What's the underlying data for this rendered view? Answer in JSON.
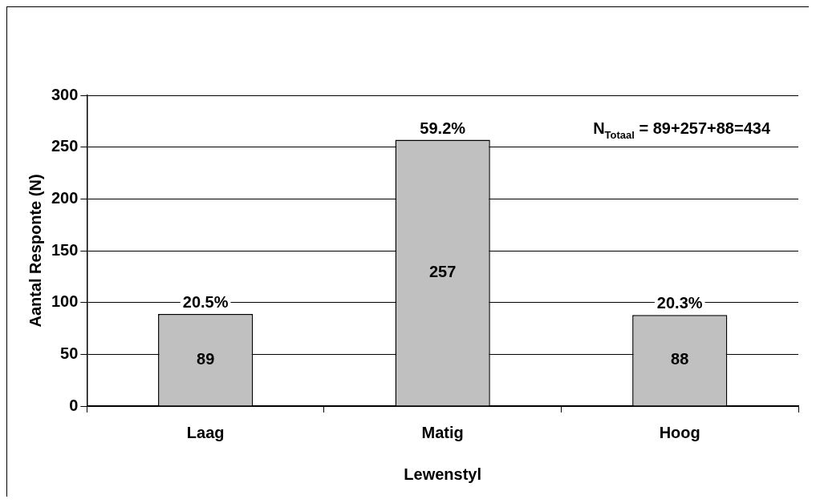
{
  "chart_data": {
    "type": "bar",
    "xlabel": "Lewenstyl",
    "ylabel": "Aantal Responte (N)",
    "categories": [
      "Laag",
      "Matig",
      "Hoog"
    ],
    "values": [
      89,
      257,
      88
    ],
    "color": "#c0c0c0",
    "ylim": [
      0,
      300
    ],
    "yticks": [
      0,
      50,
      100,
      150,
      200,
      250,
      300
    ],
    "grid": "y",
    "data_labels": true,
    "annotations": [
      {
        "text": "20.5%",
        "x": "Laag",
        "y": 89
      },
      {
        "text": "59.2%",
        "x": "Matig",
        "y": 257
      },
      {
        "text": "20.3%",
        "x": "Hoog",
        "y": 88
      },
      "N$_{Totaal}$ = 89+257+88=434"
    ]
  }
}
